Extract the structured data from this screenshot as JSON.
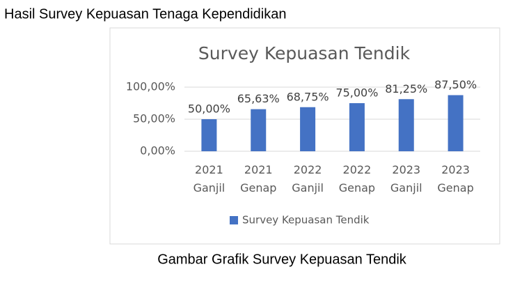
{
  "heading": "Hasil Survey Kepuasan Tenaga Kependidikan",
  "caption": "Gambar Grafik Survey Kepuasan Tendik",
  "chart_data": {
    "type": "bar",
    "title": "Survey Kepuasan Tendik",
    "categories": [
      "2021 Ganjil",
      "2021 Genap",
      "2022 Ganjil",
      "2022 Genap",
      "2023 Ganjil",
      "2023 Genap"
    ],
    "series": [
      {
        "name": "Survey Kepuasan Tendik",
        "color": "#4472c4",
        "values": [
          50,
          65.63,
          68.75,
          75,
          81.25,
          87.5
        ],
        "value_labels": [
          "50,00%",
          "65,63%",
          "68,75%",
          "75,00%",
          "81,25%",
          "87,50%"
        ]
      }
    ],
    "ylim": [
      0,
      100
    ],
    "yticks": [
      {
        "value": 0,
        "label": "0,00%"
      },
      {
        "value": 50,
        "label": "50,00%"
      },
      {
        "value": 100,
        "label": "100,00%"
      }
    ],
    "grid": true,
    "legend": "bottom"
  }
}
